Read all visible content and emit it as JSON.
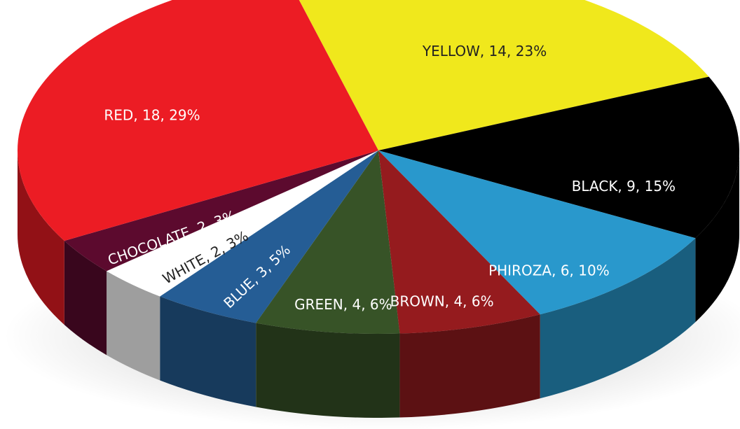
{
  "chart_data": {
    "type": "pie",
    "categories": [
      "YELLOW",
      "BLACK",
      "PHIROZA",
      "BROWN",
      "GREEN",
      "BLUE",
      "WHITE",
      "CHOCOLATE",
      "RED"
    ],
    "values": [
      14,
      9,
      6,
      4,
      4,
      3,
      2,
      2,
      18
    ],
    "value_labels": [
      "YELLOW, 14, 23%",
      "BLACK, 9, 15%",
      "PHIROZA, 6, 10%",
      "BROWN, 4, 6%",
      "GREEN, 4, 6%",
      "BLUE, 3, 5%",
      "WHITE, 2, 3%",
      "CHOCOLATE, 2, 3%",
      "RED, 18, 29%"
    ],
    "colors": [
      "#f0e81c",
      "#000000",
      "#2998cc",
      "#951b1e",
      "#375327",
      "#255d95",
      "#ffffff",
      "#5c0a2e",
      "#ec1c24"
    ]
  }
}
